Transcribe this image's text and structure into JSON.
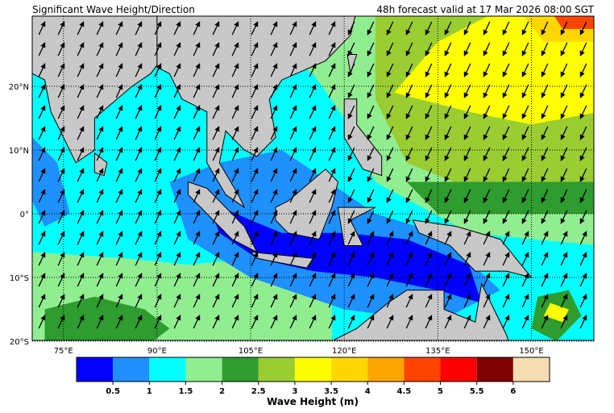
{
  "title": "Significant Wave Height/Direction",
  "subtitle": "48h forecast valid at 17 Mar 2026 08:00 SGT",
  "map": {
    "lon_labels": [
      "75°E",
      "90°E",
      "105°E",
      "120°E",
      "135°E",
      "150°E"
    ],
    "lat_labels": [
      "20°N",
      "10°N",
      "0°",
      "10°S",
      "20°S"
    ]
  },
  "colorbar": {
    "label": "Wave Height (m)",
    "colors": [
      "#0000ff",
      "#1e90ff",
      "#00ffff",
      "#90ee90",
      "#2e9c2e",
      "#9acd32",
      "#ffff00",
      "#ffd700",
      "#ffa500",
      "#ff4500",
      "#ff0000",
      "#800000",
      "#f5deb3"
    ],
    "ticks": [
      0.5,
      1,
      1.5,
      2,
      2.5,
      3,
      3.5,
      4,
      4.5,
      5,
      5.5,
      6
    ]
  }
}
